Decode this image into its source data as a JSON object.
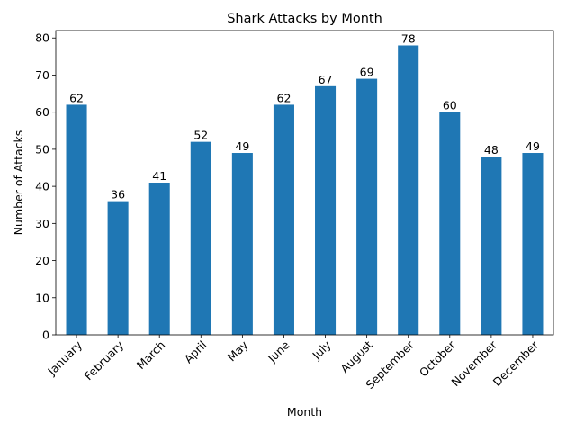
{
  "chart_data": {
    "type": "bar",
    "title": "Shark Attacks by Month",
    "xlabel": "Month",
    "ylabel": "Number of Attacks",
    "categories": [
      "January",
      "February",
      "March",
      "April",
      "May",
      "June",
      "July",
      "August",
      "September",
      "October",
      "November",
      "December"
    ],
    "values": [
      62,
      36,
      41,
      52,
      49,
      62,
      67,
      69,
      78,
      60,
      48,
      49
    ],
    "ylim": [
      0,
      82
    ],
    "yticks": [
      0,
      10,
      20,
      30,
      40,
      50,
      60,
      70,
      80
    ],
    "bar_color": "#1f77b4",
    "grid": false,
    "legend": "none",
    "data_labels": true,
    "xtick_rotation": "45 degrees"
  }
}
